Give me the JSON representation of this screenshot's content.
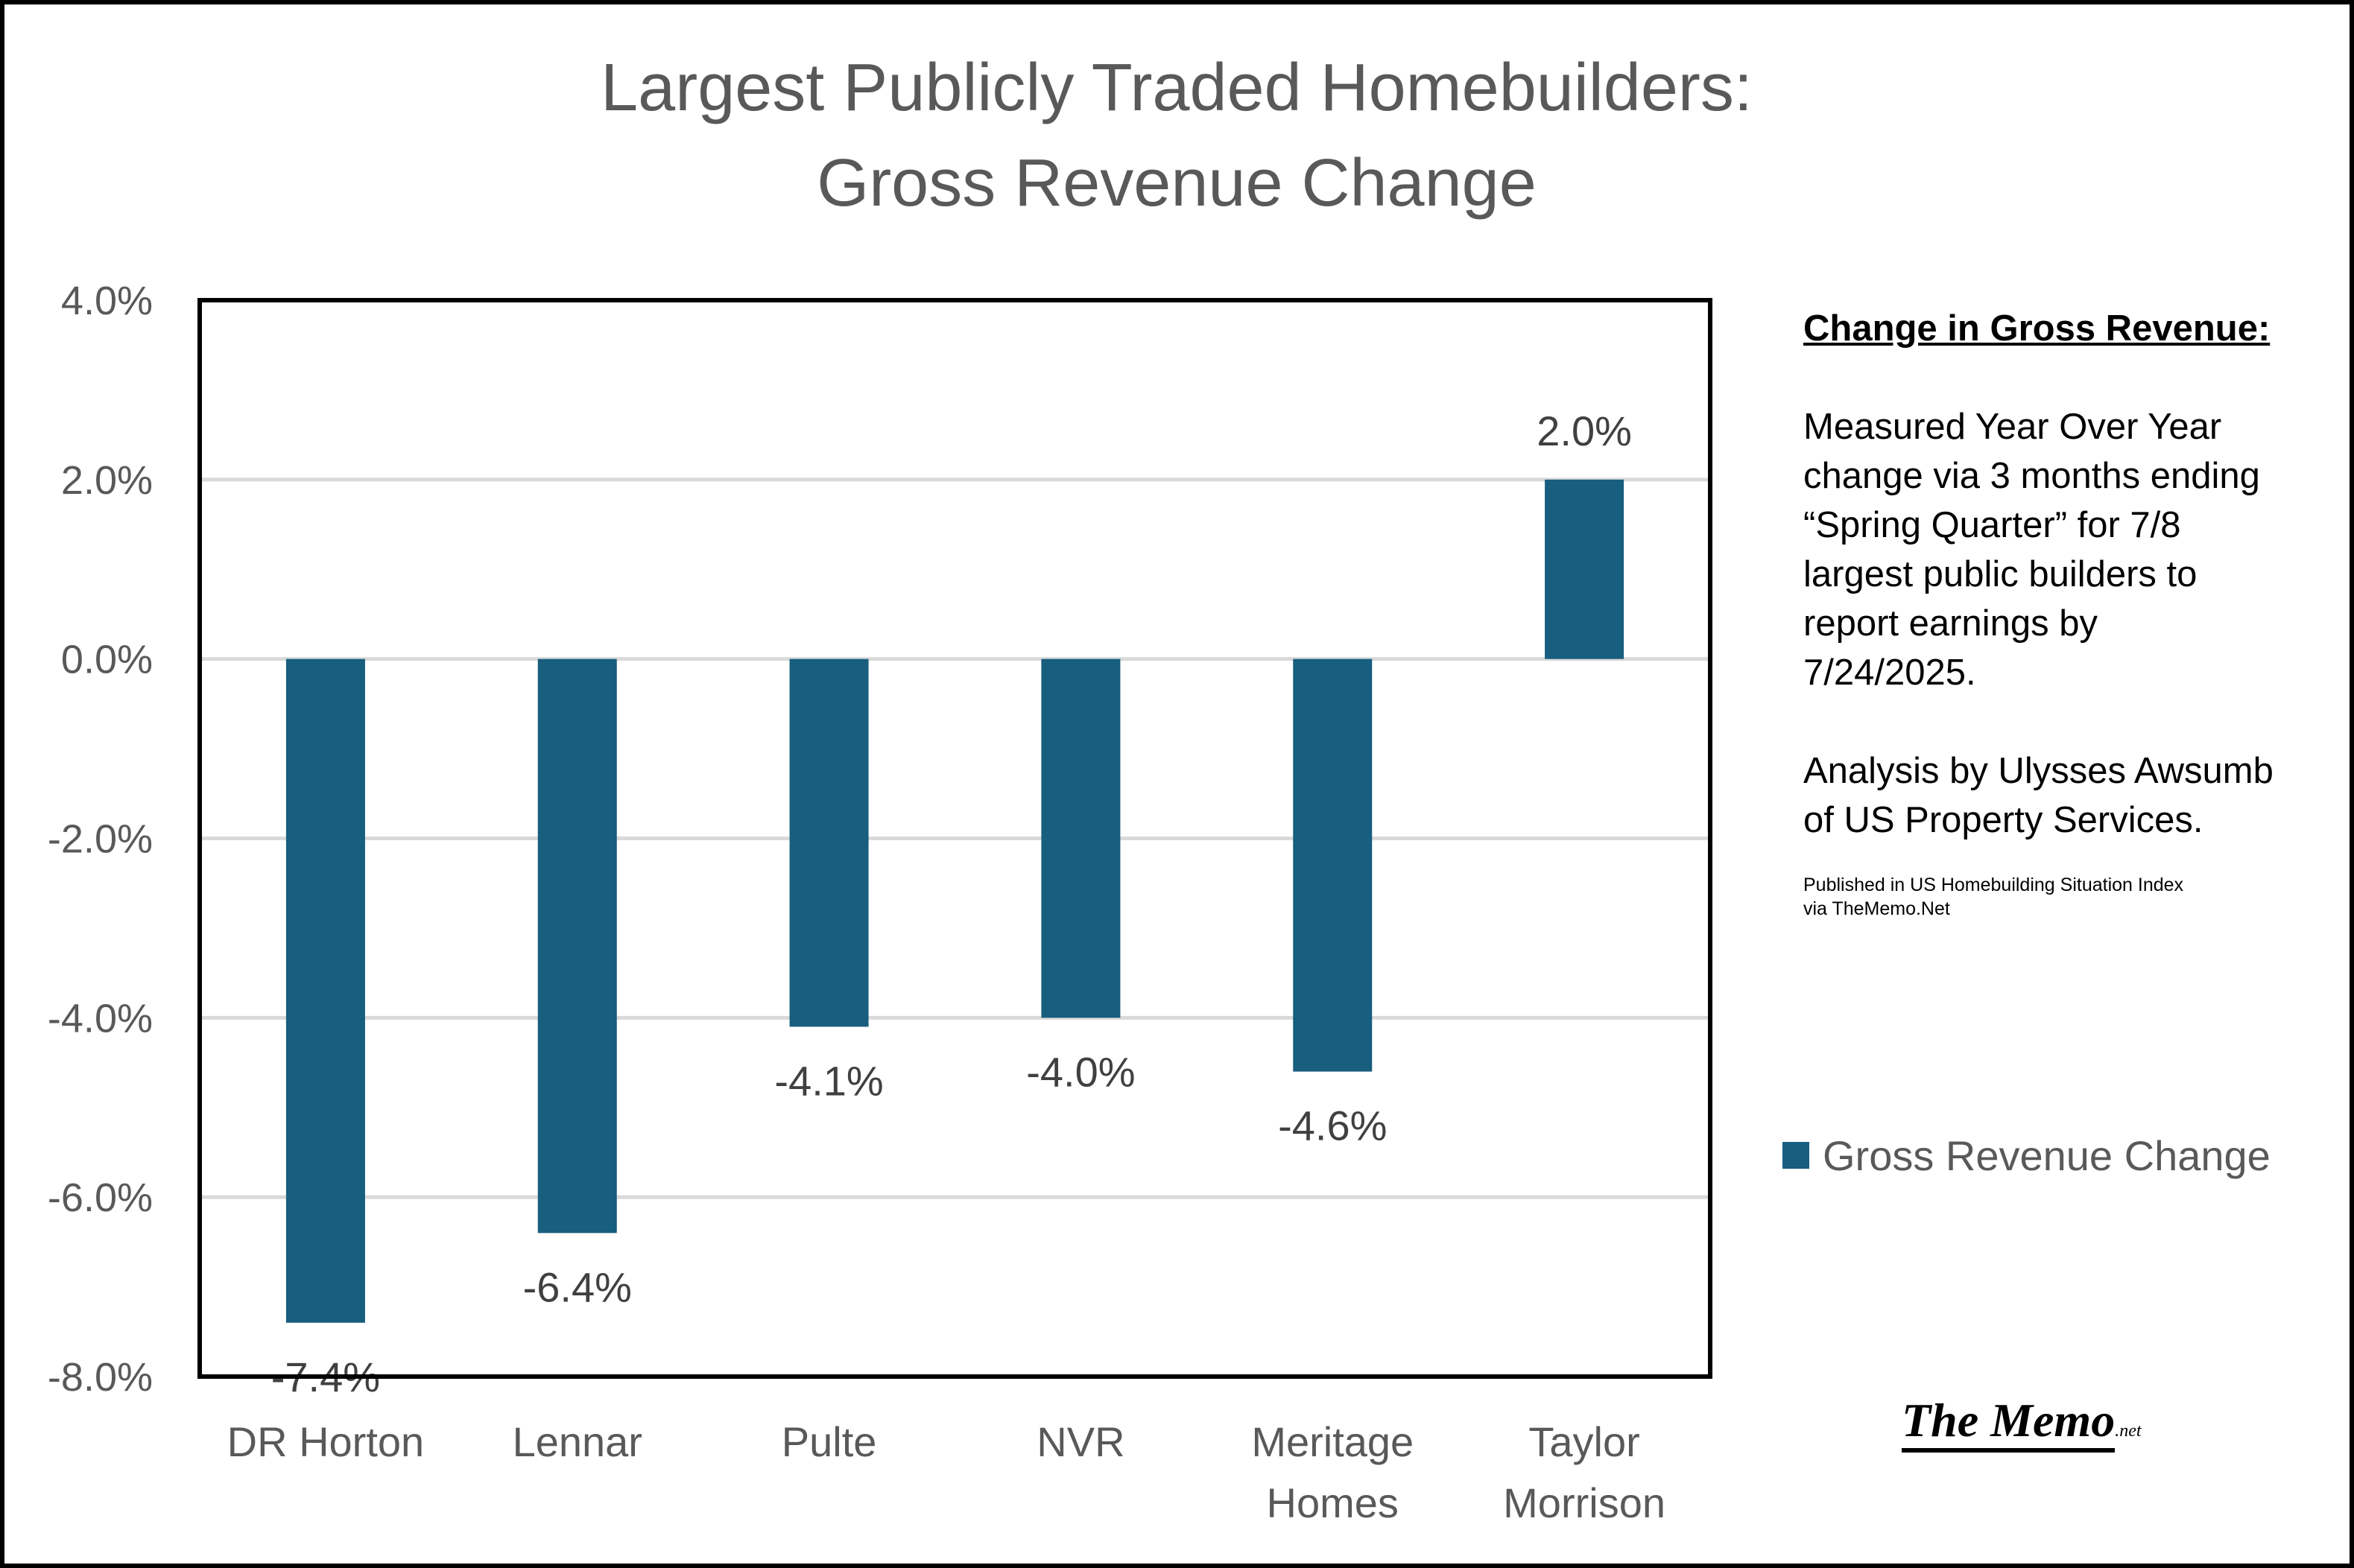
{
  "chart_data": {
    "type": "bar",
    "title": [
      "Largest Publicly Traded Homebuilders:",
      "Gross Revenue Change"
    ],
    "categories": [
      [
        "DR Horton"
      ],
      [
        "Lennar"
      ],
      [
        "Pulte"
      ],
      [
        "NVR"
      ],
      [
        "Meritage",
        "Homes"
      ],
      [
        "Taylor",
        "Morrison"
      ]
    ],
    "series": [
      {
        "name": "Gross Revenue Change",
        "values": [
          -7.4,
          -6.4,
          -4.1,
          -4.0,
          -4.6,
          2.0
        ]
      }
    ],
    "data_labels": [
      "-7.4%",
      "-6.4%",
      "-4.1%",
      "-4.0%",
      "-4.6%",
      "2.0%"
    ],
    "yticks": [
      4.0,
      2.0,
      0.0,
      -2.0,
      -4.0,
      -6.0,
      -8.0
    ],
    "ytick_labels": [
      "4.0%",
      "2.0%",
      "0.0%",
      "-2.0%",
      "-4.0%",
      "-6.0%",
      "-8.0%"
    ],
    "ylim": [
      -8.0,
      4.0
    ],
    "grid": true,
    "legend_position": "right",
    "bar_color": "#175E7F",
    "grid_color": "#D9D9D9"
  },
  "sidebar": {
    "heading": "Change in Gross Revenue:",
    "description": "Measured Year Over Year change via 3 months ending “Spring Quarter” for 7/8 largest public builders to report earnings by 7/24/2025.",
    "analysis": "Analysis by Ulysses Awsumb of US Property Services.",
    "published_line1": "Published in US Homebuilding Situation Index",
    "published_line2": "via TheMemo.Net"
  },
  "logo": {
    "main": "The Memo",
    "sub": ".net"
  }
}
